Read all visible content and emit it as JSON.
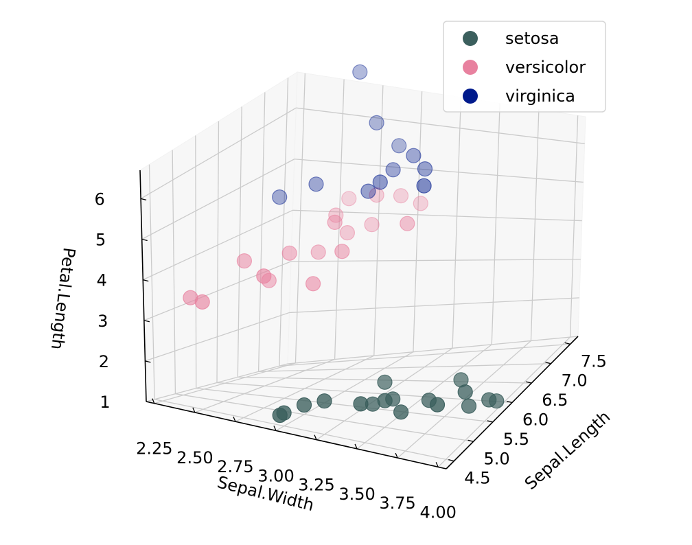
{
  "chart_data": {
    "type": "scatter-3d",
    "title": "",
    "xlabel": "Sepal.Width",
    "ylabel": "Sepal.Length",
    "zlabel": "Petal.Length",
    "xlim": [
      2.2,
      4.05
    ],
    "ylim": [
      4.3,
      7.7
    ],
    "zlim": [
      1.0,
      6.7
    ],
    "x_ticks": [
      "2.25",
      "2.50",
      "2.75",
      "3.00",
      "3.25",
      "3.50",
      "3.75",
      "4.00"
    ],
    "y_ticks": [
      "4.5",
      "5.0",
      "5.5",
      "6.0",
      "6.5",
      "7.0",
      "7.5"
    ],
    "z_ticks": [
      "1",
      "2",
      "3",
      "4",
      "5",
      "6"
    ],
    "grid": true,
    "legend_position": "top-right",
    "series": [
      {
        "name": "setosa",
        "color": "#3b5f5d",
        "points": [
          {
            "x": 3.0,
            "y": 4.4,
            "z": 1.3
          },
          {
            "x": 3.0,
            "y": 4.5,
            "z": 1.3
          },
          {
            "x": 3.1,
            "y": 4.6,
            "z": 1.5
          },
          {
            "x": 3.2,
            "y": 4.7,
            "z": 1.6
          },
          {
            "x": 3.4,
            "y": 4.8,
            "z": 1.6
          },
          {
            "x": 3.5,
            "y": 5.0,
            "z": 1.6
          },
          {
            "x": 3.6,
            "y": 5.0,
            "z": 1.4
          },
          {
            "x": 3.4,
            "y": 5.1,
            "z": 1.4
          },
          {
            "x": 3.8,
            "y": 5.1,
            "z": 1.6
          },
          {
            "x": 3.5,
            "y": 5.2,
            "z": 1.5
          },
          {
            "x": 3.4,
            "y": 5.4,
            "z": 1.7
          },
          {
            "x": 3.9,
            "y": 5.4,
            "z": 1.7
          },
          {
            "x": 4.0,
            "y": 5.8,
            "z": 1.2
          },
          {
            "x": 3.8,
            "y": 5.7,
            "z": 1.7
          },
          {
            "x": 4.0,
            "y": 5.6,
            "z": 1.4
          },
          {
            "x": 3.9,
            "y": 5.5,
            "z": 1.3
          },
          {
            "x": 3.7,
            "y": 5.3,
            "z": 1.5
          }
        ]
      },
      {
        "name": "versicolor",
        "color": "#e8819f",
        "points": [
          {
            "x": 2.4,
            "y": 4.9,
            "z": 3.3
          },
          {
            "x": 2.3,
            "y": 5.0,
            "z": 3.3
          },
          {
            "x": 2.7,
            "y": 5.2,
            "z": 3.9
          },
          {
            "x": 2.9,
            "y": 5.6,
            "z": 3.6
          },
          {
            "x": 2.7,
            "y": 5.8,
            "z": 4.1
          },
          {
            "x": 3.0,
            "y": 5.9,
            "z": 4.2
          },
          {
            "x": 2.9,
            "y": 6.1,
            "z": 4.7
          },
          {
            "x": 2.8,
            "y": 6.5,
            "z": 4.6
          },
          {
            "x": 2.8,
            "y": 6.1,
            "z": 4.0
          },
          {
            "x": 2.9,
            "y": 6.4,
            "z": 4.3
          },
          {
            "x": 3.0,
            "y": 6.7,
            "z": 5.0
          },
          {
            "x": 3.1,
            "y": 6.9,
            "z": 4.9
          },
          {
            "x": 3.2,
            "y": 7.0,
            "z": 4.7
          },
          {
            "x": 3.0,
            "y": 6.6,
            "z": 4.4
          },
          {
            "x": 2.8,
            "y": 6.8,
            "z": 4.8
          },
          {
            "x": 3.3,
            "y": 6.3,
            "z": 4.7
          },
          {
            "x": 2.5,
            "y": 5.5,
            "z": 4.0
          },
          {
            "x": 2.6,
            "y": 5.7,
            "z": 3.5
          }
        ]
      },
      {
        "name": "virginica",
        "color": "#001a8c",
        "points": [
          {
            "x": 2.6,
            "y": 7.7,
            "z": 6.9
          },
          {
            "x": 2.7,
            "y": 6.4,
            "z": 5.3
          },
          {
            "x": 2.8,
            "y": 7.4,
            "z": 6.1
          },
          {
            "x": 3.0,
            "y": 7.2,
            "z": 5.8
          },
          {
            "x": 3.0,
            "y": 6.5,
            "z": 5.2
          },
          {
            "x": 3.1,
            "y": 6.7,
            "z": 5.6
          },
          {
            "x": 3.2,
            "y": 6.8,
            "z": 5.9
          },
          {
            "x": 3.3,
            "y": 6.7,
            "z": 5.7
          },
          {
            "x": 3.4,
            "y": 6.3,
            "z": 5.6
          },
          {
            "x": 3.1,
            "y": 6.4,
            "z": 5.5
          },
          {
            "x": 2.5,
            "y": 6.3,
            "z": 5.0
          }
        ]
      }
    ]
  }
}
